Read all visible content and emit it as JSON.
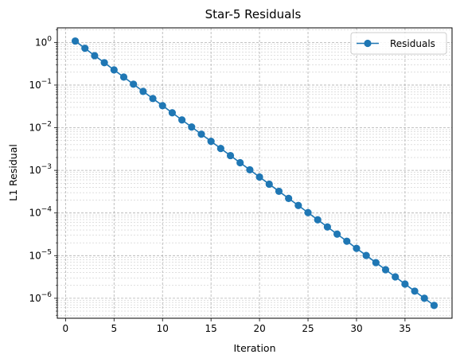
{
  "chart_data": {
    "type": "line",
    "title": "Star-5 Residuals",
    "xlabel": "Iteration",
    "ylabel": "L1 Residual",
    "x_scale": "linear",
    "y_scale": "log",
    "xlim": [
      -0.85,
      39.85
    ],
    "ylim": [
      3.4e-07,
      2.2
    ],
    "x_ticks": [
      0,
      5,
      10,
      15,
      20,
      25,
      30,
      35
    ],
    "y_ticks": [
      {
        "exp": -6,
        "value": 1e-06
      },
      {
        "exp": -5,
        "value": 1e-05
      },
      {
        "exp": -4,
        "value": 0.0001
      },
      {
        "exp": -3,
        "value": 0.001
      },
      {
        "exp": -2,
        "value": 0.01
      },
      {
        "exp": -1,
        "value": 0.1
      },
      {
        "exp": 0,
        "value": 1
      }
    ],
    "tick_base": "10",
    "grid": true,
    "grid_which": "both",
    "legend_position": "top-right",
    "series": [
      {
        "name": "Residuals",
        "color": "#1f77b4",
        "marker": "circle",
        "x": [
          1,
          2,
          3,
          4,
          5,
          6,
          7,
          8,
          9,
          10,
          11,
          12,
          13,
          14,
          15,
          16,
          17,
          18,
          19,
          20,
          21,
          22,
          23,
          24,
          25,
          26,
          27,
          28,
          29,
          30,
          31,
          32,
          33,
          34,
          35,
          36,
          37,
          38
        ],
        "y": [
          1.08,
          0.73,
          0.49,
          0.335,
          0.227,
          0.154,
          0.105,
          0.071,
          0.0484,
          0.0329,
          0.0224,
          0.0152,
          0.0104,
          0.00705,
          0.00479,
          0.00326,
          0.00222,
          0.00151,
          0.00103,
          0.000698,
          0.000475,
          0.000323,
          0.00022,
          0.00015,
          0.000102,
          6.92e-05,
          4.71e-05,
          3.2e-05,
          2.18e-05,
          1.48e-05,
          1.01e-05,
          6.86e-06,
          4.67e-06,
          3.18e-06,
          2.16e-06,
          1.47e-06,
          1e-06,
          6.8e-07
        ]
      }
    ]
  }
}
